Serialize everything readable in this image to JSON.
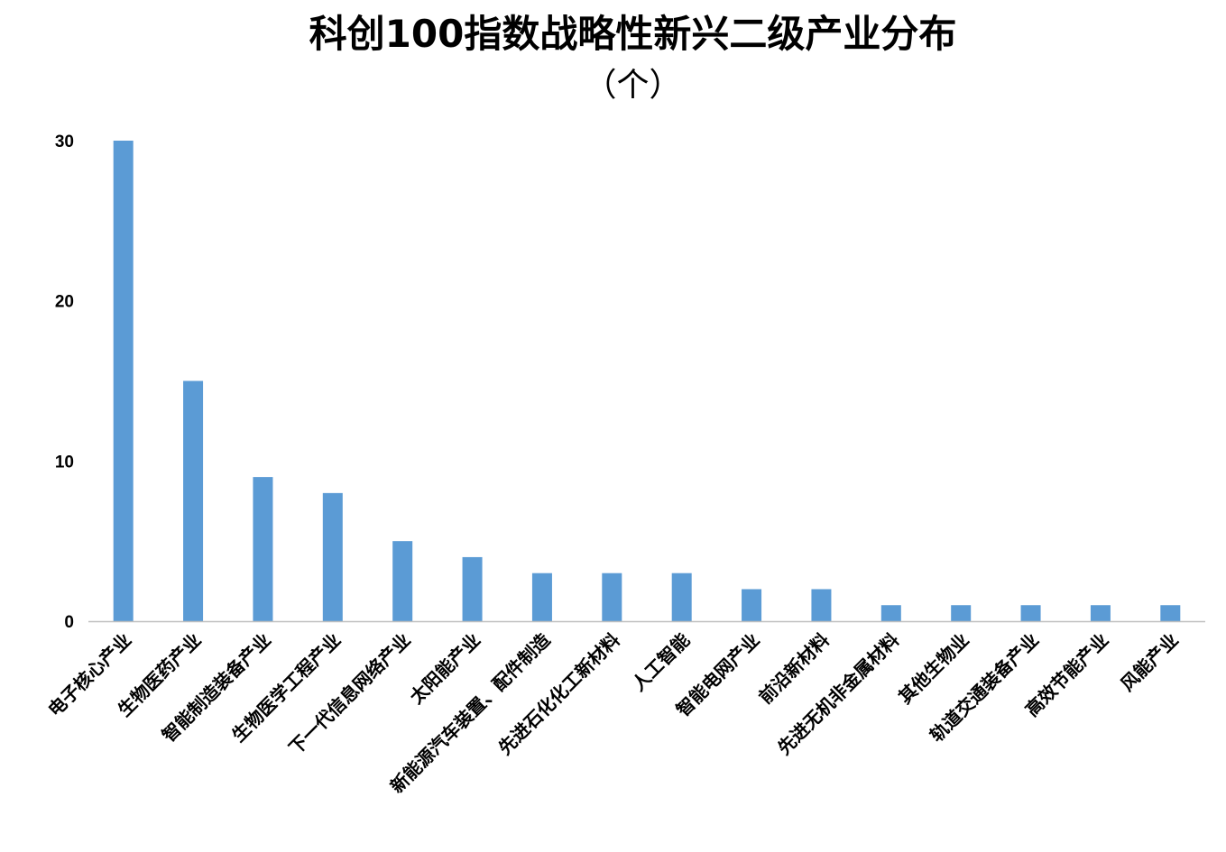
{
  "chart_data": {
    "type": "bar",
    "title": "科创100指数战略性新兴二级产业分布",
    "subtitle": "（个）",
    "xlabel": "",
    "ylabel": "",
    "ylim": [
      0,
      30
    ],
    "yticks": [
      0,
      10,
      20,
      30
    ],
    "grid": false,
    "legend": "none",
    "categories": [
      "电子核心产业",
      "生物医药产业",
      "智能制造装备产业",
      "生物医学工程产业",
      "下一代信息网络产业",
      "太阳能产业",
      "新能源汽车装置、配件制造",
      "先进石化化工新材料",
      "人工智能",
      "智能电网产业",
      "前沿新材料",
      "先进无机非金属材料",
      "其他生物业",
      "轨道交通装备产业",
      "高效节能产业",
      "风能产业"
    ],
    "series": [
      {
        "values": [
          30,
          15,
          9,
          8,
          5,
          4,
          3,
          3,
          3,
          2,
          2,
          1,
          1,
          1,
          1,
          1
        ]
      }
    ],
    "colors": {
      "bar": "#5B9BD5",
      "axis": "#BFBFBF"
    }
  }
}
